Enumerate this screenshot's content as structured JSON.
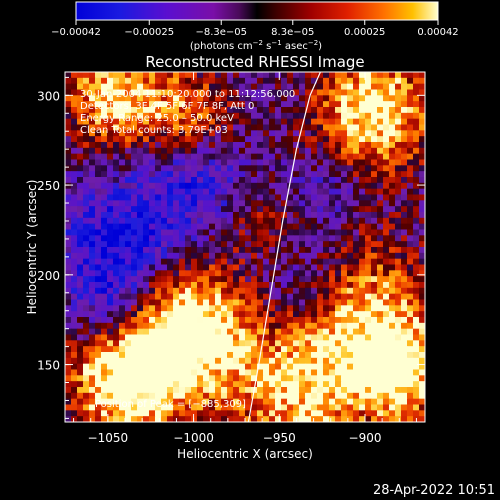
{
  "chart_data": {
    "type": "heatmap",
    "title": "Reconstructed RHESSI Image",
    "xlabel": "Heliocentric X (arcsec)",
    "ylabel": "Heliocentric Y (arcsec)",
    "xlim": [
      -1075,
      -865
    ],
    "ylim": [
      118,
      313
    ],
    "x_ticks": [
      -1050,
      -1000,
      -950,
      -900
    ],
    "x_tick_labels": [
      "−1050",
      "−1000",
      "−950",
      "−900"
    ],
    "y_ticks": [
      150,
      200,
      250,
      300
    ],
    "y_tick_labels": [
      "150",
      "200",
      "250",
      "300"
    ],
    "colorbar": {
      "range": [
        -0.00042,
        0.00042
      ],
      "ticks": [
        -0.00042,
        -0.00025,
        -8.3e-05,
        8.3e-05,
        0.00025,
        0.00042
      ],
      "tick_labels": [
        "−0.00042",
        "−0.00025",
        "−8.3e−05",
        "8.3e−05",
        "0.00025",
        "0.00042"
      ],
      "units_prefix": "(photons cm",
      "units_exp1": "−2",
      "units_mid": " s",
      "units_exp2": "−1",
      "units_mid2": " asec",
      "units_exp3": "−2",
      "units_suffix": ")"
    },
    "info_lines": [
      "30-Jan-2004 11:10:20.000 to 11:12:56.000",
      "Detectors: 3F 4F 5F 6F 7F 8F, Att 0",
      "Energy Range: 25.0 – 50.0 keV",
      "Clean      Total counts: 3.79E+03"
    ],
    "peak_label": "Position of Peak = [−885,309]",
    "limb_curve": [
      [
        -968,
        118
      ],
      [
        -962,
        150
      ],
      [
        -955,
        190
      ],
      [
        -948,
        230
      ],
      [
        -940,
        270
      ],
      [
        -932,
        300
      ],
      [
        -926,
        313
      ]
    ],
    "grid": false,
    "legend": "none"
  },
  "timestamp": "28-Apr-2022 10:51"
}
